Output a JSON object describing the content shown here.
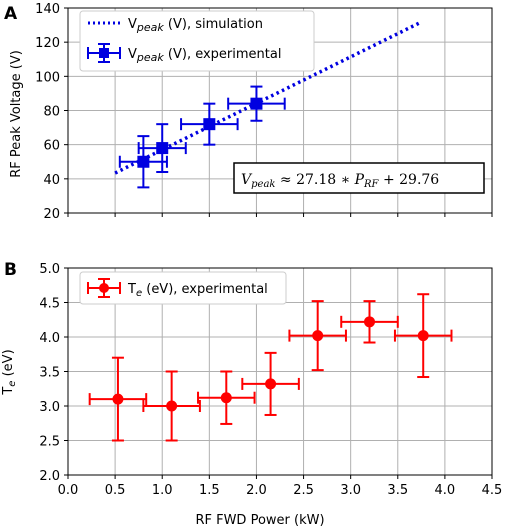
{
  "panels": [
    {
      "letter": "A"
    },
    {
      "letter": "B"
    }
  ],
  "chart_data": [
    {
      "type": "scatter",
      "panel": "A",
      "ylabel": "RF Peak Voltage (V)",
      "xlim": [
        0.0,
        4.5
      ],
      "ylim": [
        20,
        140
      ],
      "yticks": [
        "20",
        "40",
        "60",
        "80",
        "100",
        "120",
        "140"
      ],
      "grid": true,
      "legend_position": "upper-left",
      "series": [
        {
          "name": "V_peak (V), simulation",
          "style": "dotted-line",
          "color": "#0000e0",
          "x": [
            0.5,
            3.75
          ],
          "y": [
            43.4,
            131.8
          ]
        },
        {
          "name": "V_peak (V), experimental",
          "style": "square-errorbar",
          "color": "#0000e0",
          "points": [
            {
              "x": 0.8,
              "y": 50,
              "xerr": 0.25,
              "yerr": 15
            },
            {
              "x": 1.0,
              "y": 58,
              "xerr": 0.25,
              "yerr": 14
            },
            {
              "x": 1.5,
              "y": 72,
              "xerr": 0.3,
              "yerr": 12
            },
            {
              "x": 2.0,
              "y": 84,
              "xerr": 0.3,
              "yerr": 10
            }
          ]
        }
      ],
      "annotation": "V_peak ≈ 27.18 * P_RF + 29.76"
    },
    {
      "type": "scatter",
      "panel": "B",
      "ylabel": "T_e (eV)",
      "xlabel": "RF FWD Power (kW)",
      "xlim": [
        0.0,
        4.5
      ],
      "ylim": [
        2.0,
        5.0
      ],
      "xticks": [
        "0.0",
        "0.5",
        "1.0",
        "1.5",
        "2.0",
        "2.5",
        "3.0",
        "3.5",
        "4.0",
        "4.5"
      ],
      "yticks": [
        "2.0",
        "2.5",
        "3.0",
        "3.5",
        "4.0",
        "4.5",
        "5.0"
      ],
      "grid": true,
      "legend_position": "upper-left",
      "series": [
        {
          "name": "T_e (eV), experimental",
          "style": "circle-errorbar",
          "color": "#ff0000",
          "points": [
            {
              "x": 0.53,
              "y": 3.1,
              "xerr": 0.3,
              "yerr": 0.6
            },
            {
              "x": 1.1,
              "y": 3.0,
              "xerr": 0.3,
              "yerr": 0.5
            },
            {
              "x": 1.68,
              "y": 3.12,
              "xerr": 0.3,
              "yerr": 0.38
            },
            {
              "x": 2.15,
              "y": 3.32,
              "xerr": 0.3,
              "yerr": 0.45
            },
            {
              "x": 2.65,
              "y": 4.02,
              "xerr": 0.3,
              "yerr": 0.5
            },
            {
              "x": 3.2,
              "y": 4.22,
              "xerr": 0.3,
              "yerr": 0.3
            },
            {
              "x": 3.77,
              "y": 4.02,
              "xerr": 0.3,
              "yerr": 0.6
            }
          ]
        }
      ]
    }
  ]
}
